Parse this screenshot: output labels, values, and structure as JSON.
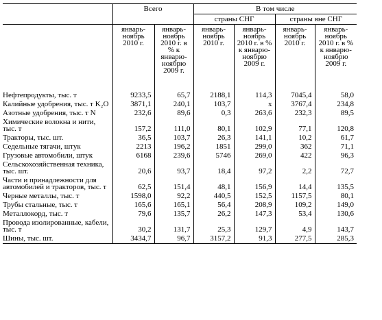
{
  "header": {
    "total": "Всего",
    "including": "В том числе",
    "cis": "страны СНГ",
    "non_cis": "страны вне СНГ",
    "subheaders": [
      "январь-ноябрь 2010 г.",
      "январь-ноябрь 2010 г. в % к январю-ноябрю 2009 г.",
      "январь-ноябрь 2010 г.",
      "январь-ноябрь 2010 г. в % к январю-ноябрю 2009 г.",
      "январь-ноябрь 2010 г.",
      "январь-ноябрь 2010 г. в % к январю-ноябрю 2009 г."
    ]
  },
  "table": {
    "rows": [
      {
        "label": "Нефтепродукты, тыс. т",
        "values": [
          "9233,5",
          "65,7",
          "2188,1",
          "114,3",
          "7045,4",
          "58,0"
        ]
      },
      {
        "label": "Калийные удобрения, тыс. т K₂O",
        "values": [
          "3871,1",
          "240,1",
          "103,7",
          "x",
          "3767,4",
          "234,8"
        ]
      },
      {
        "label": "Азотные удобрения, тыс. т N",
        "values": [
          "232,6",
          "89,6",
          "0,3",
          "263,6",
          "232,3",
          "89,5"
        ]
      },
      {
        "label": "Химические волокна и нити, тыс. т",
        "values": [
          "157,2",
          "111,0",
          "80,1",
          "102,9",
          "77,1",
          "120,8"
        ]
      },
      {
        "label": "Тракторы, тыс. шт.",
        "values": [
          "36,5",
          "103,7",
          "26,3",
          "141,1",
          "10,2",
          "61,7"
        ]
      },
      {
        "label": "Седельные тягачи, штук",
        "values": [
          "2213",
          "196,2",
          "1851",
          "299,0",
          "362",
          "71,1"
        ]
      },
      {
        "label": "Грузовые автомобили, штук",
        "values": [
          "6168",
          "239,6",
          "5746",
          "269,0",
          "422",
          "96,3"
        ]
      },
      {
        "label": "Сельскохозяйственная техника, тыс. шт.",
        "values": [
          "20,6",
          "93,7",
          "18,4",
          "97,2",
          "2,2",
          "72,7"
        ]
      },
      {
        "label": "Части и принадлежности для автомобилей и тракторов, тыс. т",
        "values": [
          "62,5",
          "151,4",
          "48,1",
          "156,9",
          "14,4",
          "135,5"
        ]
      },
      {
        "label": "Черные металлы, тыс. т",
        "values": [
          "1598,0",
          "92,2",
          "440,5",
          "152,5",
          "1157,5",
          "80,1"
        ]
      },
      {
        "label": "Трубы стальные, тыс. т",
        "values": [
          "165,6",
          "165,1",
          "56,4",
          "208,9",
          "109,2",
          "149,0"
        ]
      },
      {
        "label": "Металлокорд, тыс. т",
        "values": [
          "79,6",
          "135,7",
          "26,2",
          "147,3",
          "53,4",
          "130,6"
        ]
      },
      {
        "label": "Провода изолированные, кабели, тыс. т",
        "values": [
          "30,2",
          "131,7",
          "25,3",
          "129,7",
          "4,9",
          "143,7"
        ]
      },
      {
        "label": "Шины, тыс. шт.",
        "values": [
          "3434,7",
          "96,7",
          "3157,2",
          "91,3",
          "277,5",
          "285,3"
        ]
      }
    ]
  }
}
